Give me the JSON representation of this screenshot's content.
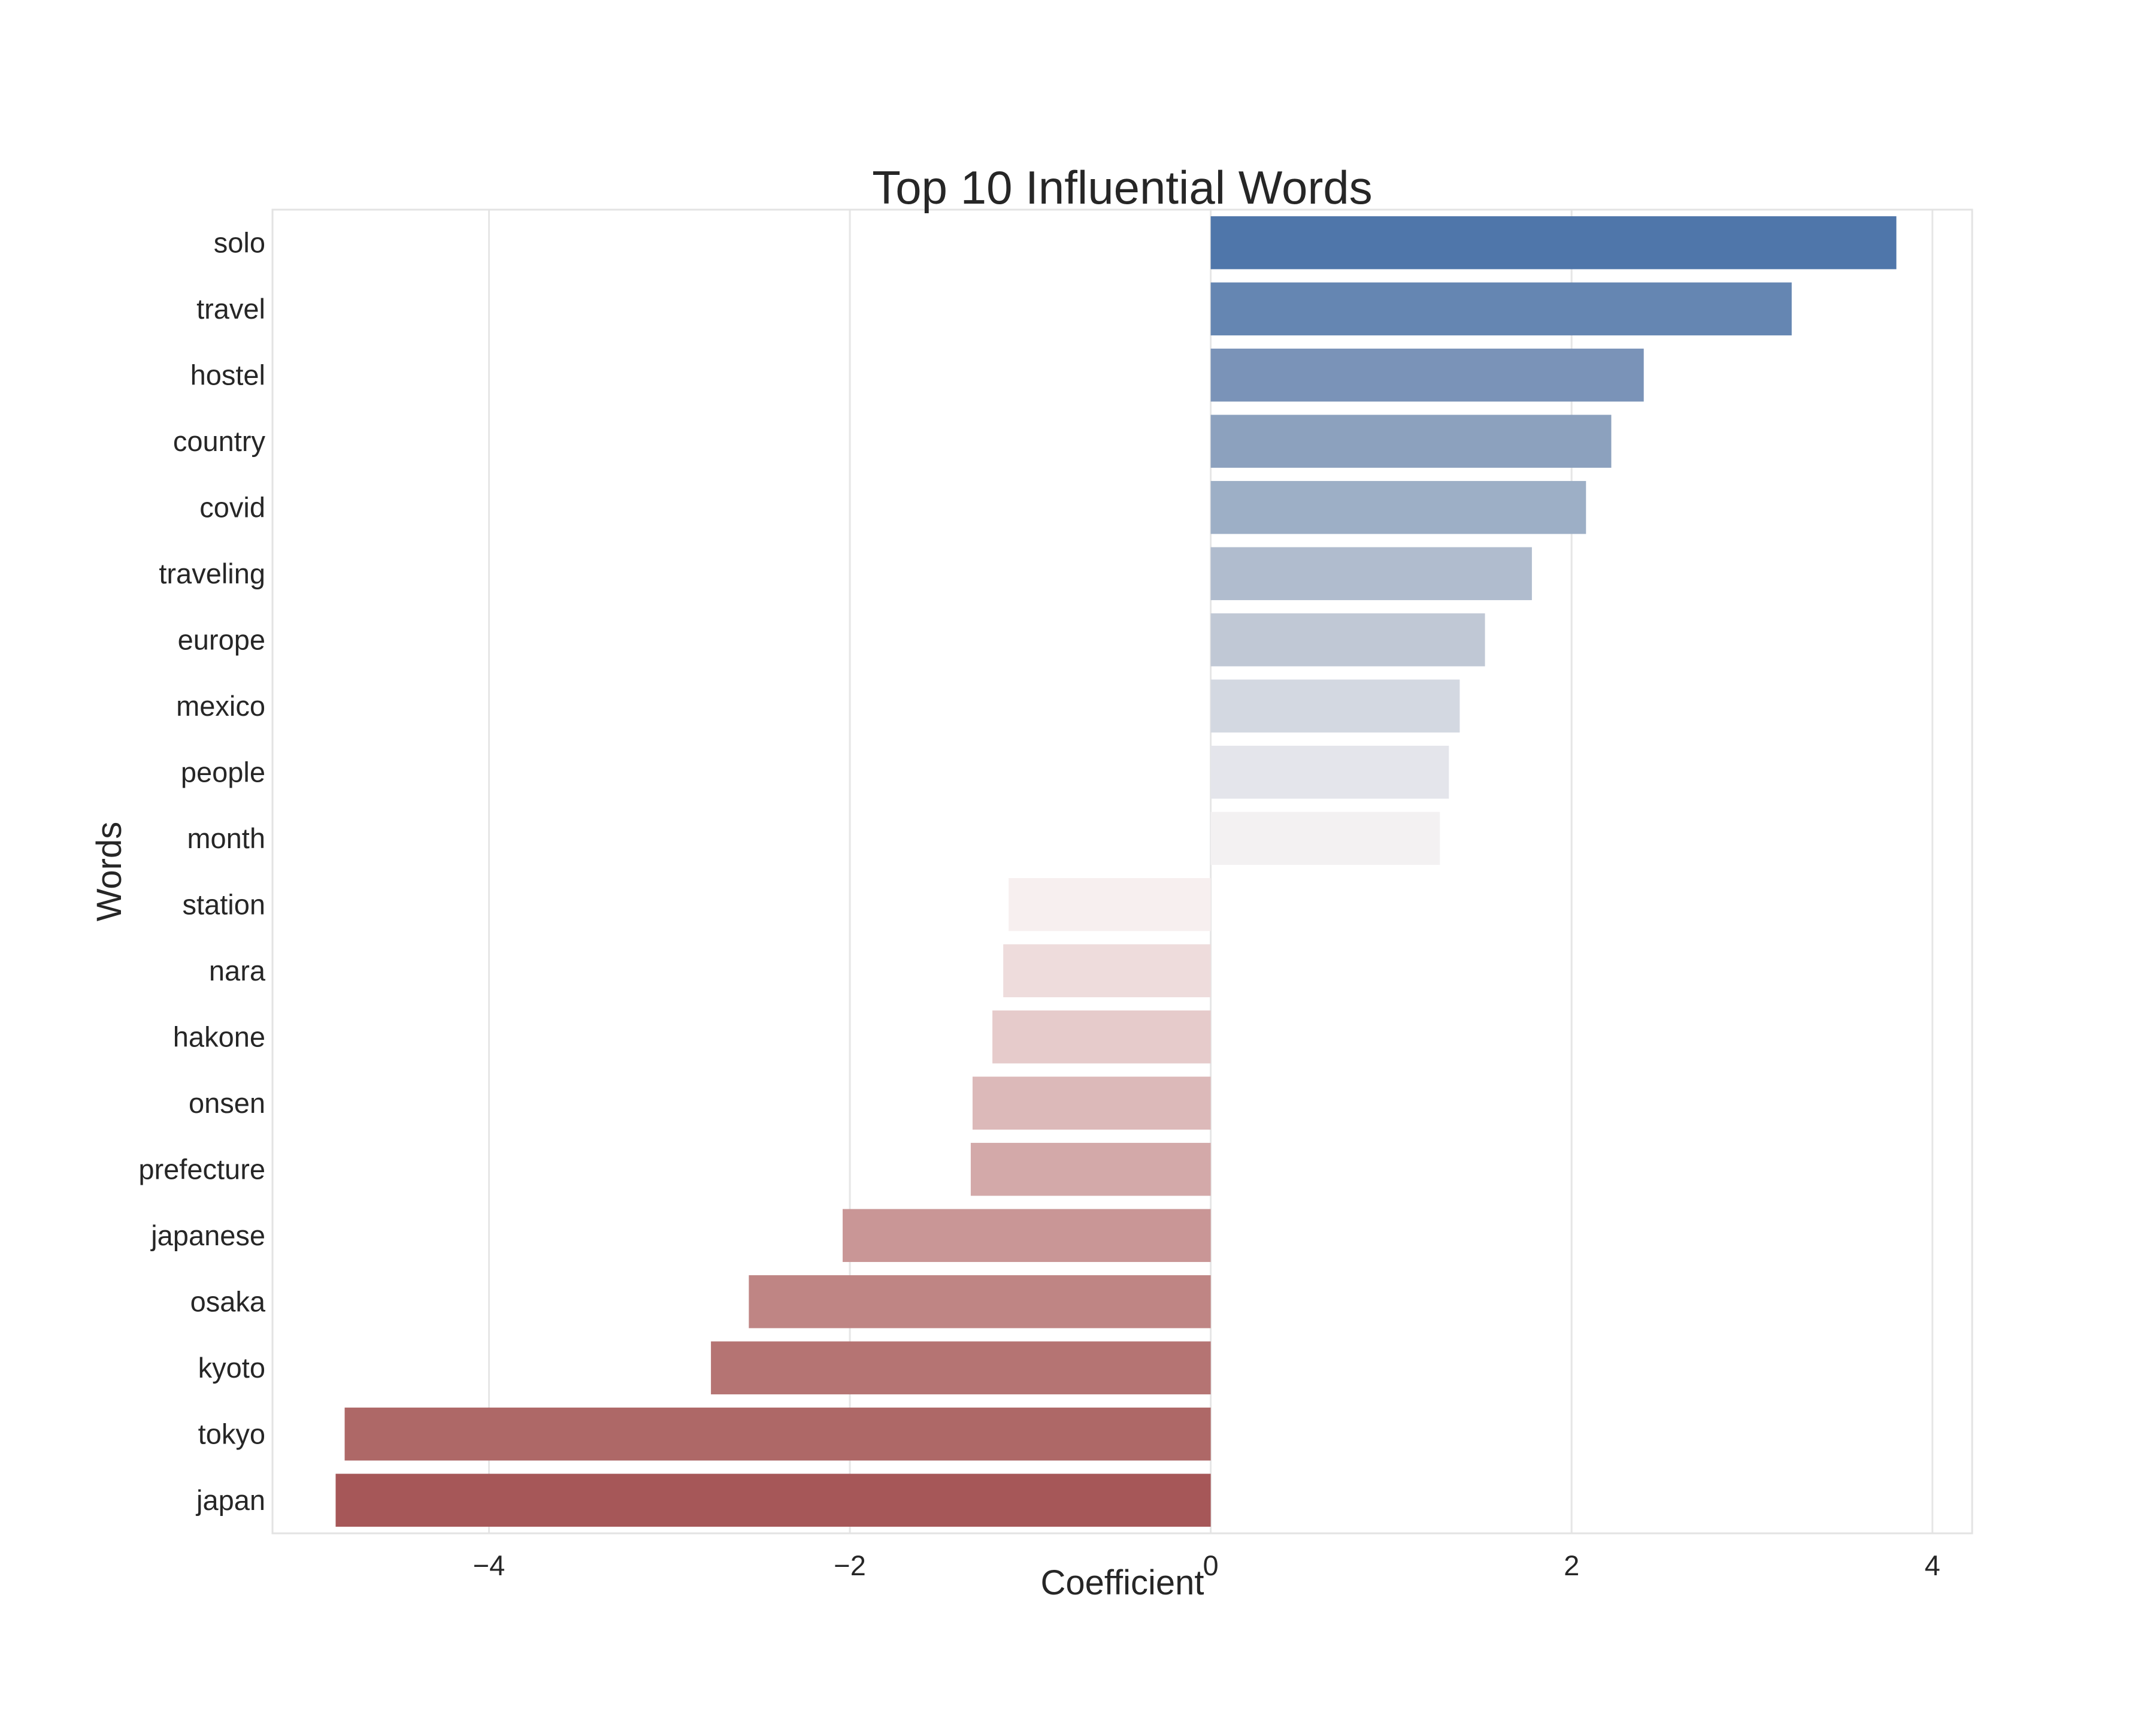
{
  "chart_data": {
    "type": "bar",
    "orientation": "horizontal",
    "title": "Top 10 Influential Words",
    "xlabel": "Coefficient",
    "ylabel": "Words",
    "categories": [
      "solo",
      "travel",
      "hostel",
      "country",
      "covid",
      "traveling",
      "europe",
      "mexico",
      "people",
      "month",
      "station",
      "nara",
      "hakone",
      "onsen",
      "prefecture",
      "japanese",
      "osaka",
      "kyoto",
      "tokyo",
      "japan"
    ],
    "values": [
      3.8,
      3.22,
      2.4,
      2.22,
      2.08,
      1.78,
      1.52,
      1.38,
      1.32,
      1.27,
      -1.12,
      -1.15,
      -1.21,
      -1.32,
      -1.33,
      -2.04,
      -2.56,
      -2.77,
      -4.8,
      -4.85
    ],
    "colors": [
      "#4f76aa",
      "#6586b2",
      "#7a93b8",
      "#8ca1be",
      "#9dafc6",
      "#b0bcce",
      "#c0c8d5",
      "#d3d8e1",
      "#e4e5eb",
      "#f3f1f2",
      "#f7efef",
      "#eedcdc",
      "#e6cbcb",
      "#dcb9b9",
      "#d3a9a9",
      "#c99696",
      "#bf8584",
      "#b57473",
      "#ae6867",
      "#a65758"
    ],
    "xlim": [
      -5.2,
      4.22
    ],
    "xticks": [
      -4,
      -2,
      0,
      2,
      4
    ],
    "xtick_labels": [
      "−4",
      "−2",
      "0",
      "2",
      "4"
    ],
    "grid": true
  }
}
